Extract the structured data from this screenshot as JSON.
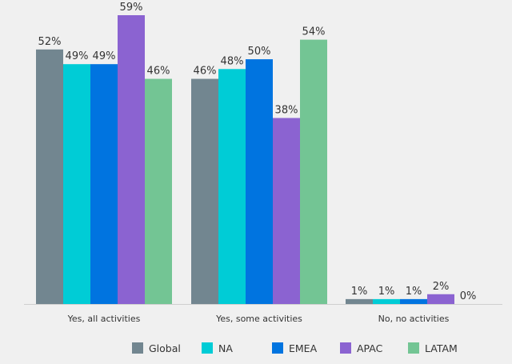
{
  "chart_data": {
    "type": "bar",
    "title": "",
    "xlabel": "",
    "ylabel": "",
    "ylim": [
      0,
      59
    ],
    "grid": false,
    "legend_position": "bottom",
    "value_suffix": "%",
    "categories": [
      "Yes, all activities",
      "Yes, some activities",
      "No, no activities"
    ],
    "series": [
      {
        "name": "Global",
        "color": "#728690",
        "values": [
          52,
          46,
          1
        ]
      },
      {
        "name": "NA",
        "color": "#00ccd6",
        "values": [
          49,
          48,
          1
        ]
      },
      {
        "name": "EMEA",
        "color": "#0074e0",
        "values": [
          49,
          50,
          1
        ]
      },
      {
        "name": "APAC",
        "color": "#8b63d1",
        "values": [
          59,
          38,
          2
        ]
      },
      {
        "name": "LATAM",
        "color": "#73c594",
        "values": [
          46,
          54,
          0
        ]
      }
    ]
  }
}
